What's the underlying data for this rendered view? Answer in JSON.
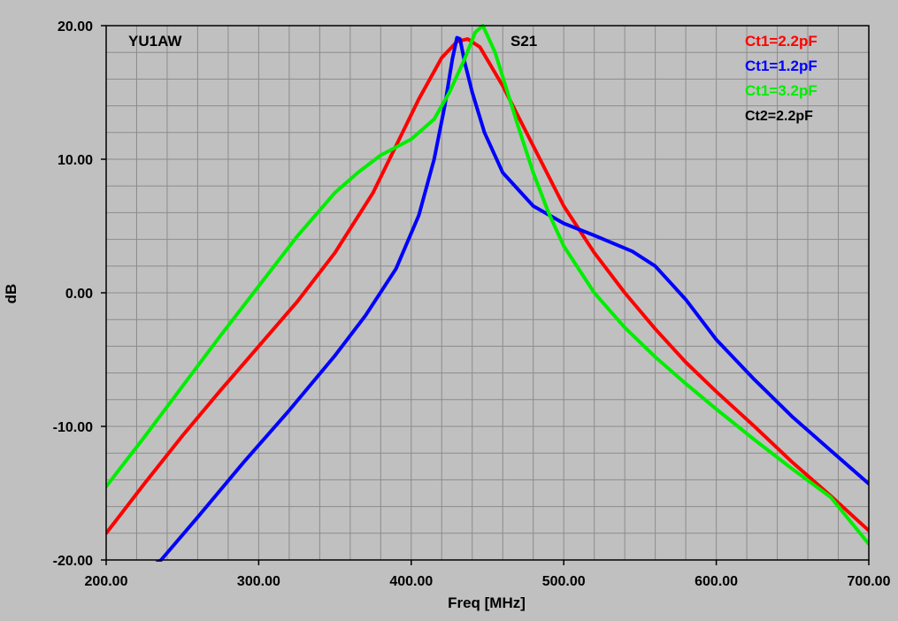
{
  "chart_data": {
    "type": "line",
    "title": "S21",
    "author_label": "YU1AW",
    "xlabel": "Freq [MHz]",
    "ylabel": "dB",
    "xlim": [
      200,
      700
    ],
    "ylim": [
      -20,
      20
    ],
    "x_major_ticks": [
      200,
      300,
      400,
      500,
      600,
      700
    ],
    "x_tick_labels": [
      "200.00",
      "300.00",
      "400.00",
      "500.00",
      "600.00",
      "700.00"
    ],
    "y_major_ticks": [
      20,
      10,
      0,
      -10,
      -20
    ],
    "y_tick_labels": [
      "20.00",
      "10.00",
      "0.00",
      "-10.00",
      "-20.00"
    ],
    "x_minor_step": 20,
    "y_minor_step": 2,
    "grid": true,
    "legend_position": "top-right",
    "legend_note": {
      "text": "Ct2=2.2pF",
      "color": "#000000"
    },
    "background_color": "#c0c0c0",
    "grid_color": "#8c8c8c",
    "series": [
      {
        "name": "Ct1=2.2pF",
        "color": "#ff0000",
        "points": [
          [
            200,
            -18
          ],
          [
            225,
            -14.3
          ],
          [
            250,
            -10.7
          ],
          [
            275,
            -7.3
          ],
          [
            300,
            -4
          ],
          [
            325,
            -0.7
          ],
          [
            350,
            3
          ],
          [
            375,
            7.5
          ],
          [
            390,
            11
          ],
          [
            405,
            14.5
          ],
          [
            420,
            17.6
          ],
          [
            430,
            18.8
          ],
          [
            437,
            19
          ],
          [
            445,
            18.4
          ],
          [
            460,
            15.5
          ],
          [
            480,
            11
          ],
          [
            500,
            6.5
          ],
          [
            520,
            3
          ],
          [
            540,
            0
          ],
          [
            560,
            -2.7
          ],
          [
            580,
            -5.2
          ],
          [
            600,
            -7.4
          ],
          [
            625,
            -10
          ],
          [
            650,
            -12.7
          ],
          [
            675,
            -15.2
          ],
          [
            700,
            -17.8
          ]
        ]
      },
      {
        "name": "Ct1=1.2pF",
        "color": "#0000ff",
        "points": [
          [
            232,
            -20.3
          ],
          [
            236,
            -20
          ],
          [
            260,
            -16.8
          ],
          [
            290,
            -12.7
          ],
          [
            320,
            -8.8
          ],
          [
            350,
            -4.7
          ],
          [
            370,
            -1.7
          ],
          [
            390,
            1.8
          ],
          [
            405,
            5.8
          ],
          [
            415,
            10
          ],
          [
            422,
            14
          ],
          [
            427,
            17.5
          ],
          [
            430,
            19.1
          ],
          [
            432,
            19
          ],
          [
            435,
            17.3
          ],
          [
            440,
            15
          ],
          [
            448,
            12
          ],
          [
            460,
            9
          ],
          [
            480,
            6.5
          ],
          [
            500,
            5.2
          ],
          [
            520,
            4.3
          ],
          [
            545,
            3.1
          ],
          [
            560,
            2
          ],
          [
            580,
            -0.5
          ],
          [
            600,
            -3.5
          ],
          [
            625,
            -6.5
          ],
          [
            650,
            -9.3
          ],
          [
            675,
            -11.8
          ],
          [
            700,
            -14.3
          ]
        ]
      },
      {
        "name": "Ct1=3.2pF",
        "color": "#00ee00",
        "points": [
          [
            200,
            -14.5
          ],
          [
            225,
            -10.8
          ],
          [
            250,
            -7
          ],
          [
            275,
            -3.2
          ],
          [
            300,
            0.5
          ],
          [
            325,
            4.2
          ],
          [
            350,
            7.5
          ],
          [
            365,
            9
          ],
          [
            380,
            10.3
          ],
          [
            400,
            11.5
          ],
          [
            415,
            13
          ],
          [
            425,
            15
          ],
          [
            435,
            17.5
          ],
          [
            442,
            19.5
          ],
          [
            447,
            20
          ],
          [
            455,
            18
          ],
          [
            470,
            12.5
          ],
          [
            480,
            9
          ],
          [
            490,
            6
          ],
          [
            500,
            3.5
          ],
          [
            520,
            0
          ],
          [
            540,
            -2.6
          ],
          [
            560,
            -4.8
          ],
          [
            580,
            -6.8
          ],
          [
            600,
            -8.7
          ],
          [
            625,
            -11
          ],
          [
            650,
            -13.2
          ],
          [
            675,
            -15.3
          ],
          [
            700,
            -18.8
          ]
        ]
      }
    ]
  }
}
